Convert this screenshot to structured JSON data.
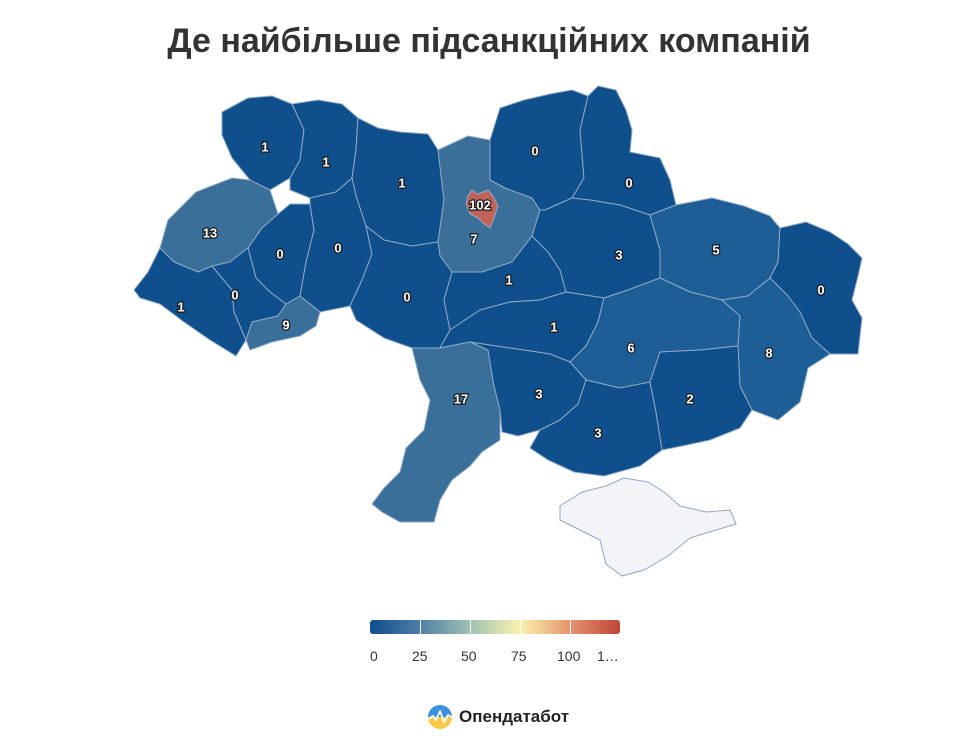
{
  "title": "Де найбільше підсанкційних компаній",
  "colors": {
    "dark_blue": "#0f4f8c",
    "mid_blue": "#1e5e96",
    "steel_blue": "#3a6f9a",
    "kyiv_red": "#c0645a",
    "crimea": "#f3f4f8",
    "border": "#8fa9c7"
  },
  "map": {
    "regions": [
      {
        "name": "Volyn",
        "value": "1"
      },
      {
        "name": "Rivne",
        "value": "1"
      },
      {
        "name": "Zhytomyr",
        "value": "1"
      },
      {
        "name": "Kyiv Oblast",
        "value": "7"
      },
      {
        "name": "Kyiv",
        "value": "102"
      },
      {
        "name": "Chernihiv",
        "value": "0"
      },
      {
        "name": "Sumy",
        "value": "0"
      },
      {
        "name": "Lviv",
        "value": "13"
      },
      {
        "name": "Ternopil",
        "value": "0"
      },
      {
        "name": "Khmelnytskyi",
        "value": "0"
      },
      {
        "name": "Vinnytsia",
        "value": "0"
      },
      {
        "name": "Cherkasy",
        "value": "1"
      },
      {
        "name": "Poltava",
        "value": "3"
      },
      {
        "name": "Kharkiv",
        "value": "5"
      },
      {
        "name": "Luhansk",
        "value": "0"
      },
      {
        "name": "Zakarpattia",
        "value": "1"
      },
      {
        "name": "Ivano-Frankivsk",
        "value": "0"
      },
      {
        "name": "Chernivtsi",
        "value": "9"
      },
      {
        "name": "Kirovohrad",
        "value": "1"
      },
      {
        "name": "Dnipropetrovsk",
        "value": "6"
      },
      {
        "name": "Donetsk",
        "value": "8"
      },
      {
        "name": "Odesa",
        "value": "17"
      },
      {
        "name": "Mykolaiv",
        "value": "3"
      },
      {
        "name": "Kherson",
        "value": "3"
      },
      {
        "name": "Zaporizhzhia",
        "value": "2"
      },
      {
        "name": "Crimea",
        "value": ""
      }
    ]
  },
  "legend": {
    "colors": [
      "#0f4f8c",
      "#4e7ea8",
      "#9fc2b0",
      "#fbf2b0",
      "#e5946e",
      "#c0453b"
    ],
    "ticks": [
      "0",
      "25",
      "50",
      "75",
      "100",
      "1…"
    ]
  },
  "brand": {
    "name": "Опендатабот"
  }
}
